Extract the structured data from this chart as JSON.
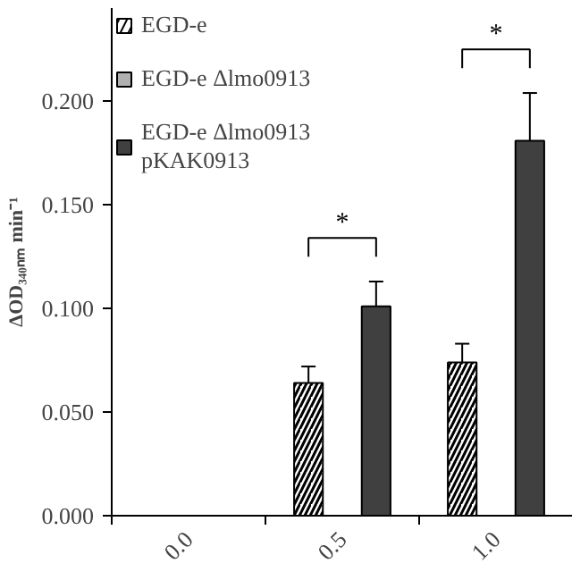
{
  "chart_data": {
    "type": "bar",
    "ylabel": "ΔOD₃₄₀ₙₘ min⁻¹",
    "categories": [
      "0.0",
      "0.5",
      "1.0"
    ],
    "series": [
      {
        "name": "EGD-e",
        "color": "#ffffff",
        "values": [
          null,
          0.064,
          0.074
        ],
        "errors": [
          null,
          0.008,
          0.009
        ]
      },
      {
        "name": "EGD-e Δlmo0913",
        "color": "#b0b0b0",
        "values": [
          null,
          null,
          null
        ]
      },
      {
        "name": "EGD-e Δlmo0913\npKAK0913",
        "color": "#404040",
        "values": [
          null,
          0.101,
          0.181
        ],
        "errors": [
          null,
          0.012,
          0.023
        ]
      }
    ],
    "ylim": [
      0,
      0.245
    ],
    "yticks": [
      {
        "value": 0,
        "label": "0.000"
      },
      {
        "value": 0.05,
        "label": "0.050"
      },
      {
        "value": 0.1,
        "label": "0.100"
      },
      {
        "value": 0.15,
        "label": "0.150"
      },
      {
        "value": 0.2,
        "label": "0.200"
      }
    ],
    "annotations": [
      "*",
      "*"
    ],
    "legend": "top left",
    "grid": false
  }
}
